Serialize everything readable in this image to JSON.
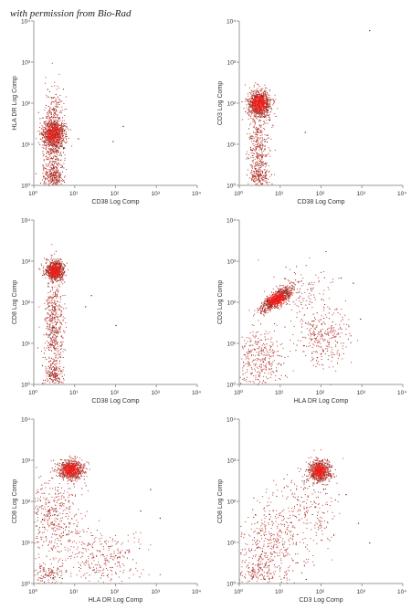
{
  "watermark": "with permission from Bio-Rad",
  "colors": {
    "dense": "#e8201c",
    "sparse": "#c23a32",
    "dark": "#6a1a14",
    "axis": "#9a9a9a"
  },
  "chart_data": [
    {
      "type": "scatter",
      "xlabel": "CD38 Log Comp",
      "ylabel": "HLA DR Log Comp",
      "xscale": "log",
      "yscale": "log",
      "xlim": [
        1,
        10000
      ],
      "ylim": [
        1,
        10000
      ],
      "xticks": [
        "10⁰",
        "10¹",
        "10²",
        "10³",
        "10⁴"
      ],
      "yticks": [
        "10⁰",
        "10¹",
        "10²",
        "10³",
        "10⁴"
      ],
      "clusters": [
        {
          "cx": 3,
          "cy": 18,
          "sx": 0.14,
          "sy": 0.18,
          "n": 900
        },
        {
          "cx": 3,
          "cy": 40,
          "sx": 0.13,
          "sy": 0.45,
          "n": 250
        },
        {
          "cx": 3,
          "cy": 1.6,
          "sx": 0.13,
          "sy": 0.16,
          "n": 260
        },
        {
          "cx": 3,
          "cy": 5,
          "sx": 0.13,
          "sy": 0.35,
          "n": 200
        }
      ],
      "outliers": [
        [
          12,
          14
        ],
        [
          85,
          12
        ],
        [
          150,
          28
        ]
      ]
    },
    {
      "type": "scatter",
      "xlabel": "CD38 Log Comp",
      "ylabel": "CD3 Log Comp",
      "xscale": "log",
      "yscale": "log",
      "xlim": [
        1,
        10000
      ],
      "ylim": [
        1,
        10000
      ],
      "xticks": [
        "10⁰",
        "10¹",
        "10²",
        "10³",
        "10⁴"
      ],
      "yticks": [
        "10⁰",
        "10¹",
        "10²",
        "10³",
        "10⁴"
      ],
      "clusters": [
        {
          "cx": 3,
          "cy": 100,
          "sx": 0.14,
          "sy": 0.16,
          "n": 1000
        },
        {
          "cx": 3,
          "cy": 8,
          "sx": 0.13,
          "sy": 0.45,
          "n": 350
        },
        {
          "cx": 3,
          "cy": 1.7,
          "sx": 0.12,
          "sy": 0.15,
          "n": 150
        }
      ],
      "outliers": [
        [
          40,
          20
        ],
        [
          1500,
          6000
        ]
      ]
    },
    {
      "type": "scatter",
      "xlabel": "CD38 Log Comp",
      "ylabel": "CD8 Log Comp",
      "xscale": "log",
      "yscale": "log",
      "xlim": [
        1,
        10000
      ],
      "ylim": [
        1,
        10000
      ],
      "xticks": [
        "10⁰",
        "10¹",
        "10²",
        "10³",
        "10⁴"
      ],
      "yticks": [
        "10⁰",
        "10¹",
        "10²",
        "10³",
        "10⁴"
      ],
      "clusters": [
        {
          "cx": 3.2,
          "cy": 600,
          "sx": 0.11,
          "sy": 0.12,
          "n": 800
        },
        {
          "cx": 3,
          "cy": 30,
          "sx": 0.12,
          "sy": 0.6,
          "n": 500
        },
        {
          "cx": 3,
          "cy": 1.6,
          "sx": 0.12,
          "sy": 0.15,
          "n": 160
        }
      ],
      "outliers": [
        [
          18,
          80
        ],
        [
          100,
          28
        ],
        [
          25,
          150
        ]
      ]
    },
    {
      "type": "scatter",
      "xlabel": "HLA DR Log Comp",
      "ylabel": "CD3 Log Comp",
      "xscale": "log",
      "yscale": "log",
      "xlim": [
        1,
        10000
      ],
      "ylim": [
        1,
        10000
      ],
      "xticks": [
        "10⁰",
        "10¹",
        "10²",
        "10³",
        "10⁴"
      ],
      "yticks": [
        "10⁰",
        "10¹",
        "10²",
        "10³",
        "10⁴"
      ],
      "clusters": [
        {
          "cx": 8,
          "cy": 120,
          "sx": 0.18,
          "sy": 0.14,
          "n": 1000,
          "rho": 0.75
        },
        {
          "cx": 3,
          "cy": 4,
          "sx": 0.3,
          "sy": 0.4,
          "n": 350
        },
        {
          "cx": 100,
          "cy": 15,
          "sx": 0.35,
          "sy": 0.35,
          "n": 300
        },
        {
          "cx": 40,
          "cy": 200,
          "sx": 0.4,
          "sy": 0.35,
          "n": 120
        }
      ],
      "outliers": [
        [
          600,
          300
        ],
        [
          900,
          40
        ],
        [
          300,
          400
        ]
      ]
    },
    {
      "type": "scatter",
      "xlabel": "HLA DR Log Comp",
      "ylabel": "CD8 Log Comp",
      "xscale": "log",
      "yscale": "log",
      "xlim": [
        1,
        10000
      ],
      "ylim": [
        1,
        10000
      ],
      "xticks": [
        "10⁰",
        "10¹",
        "10²",
        "10³",
        "10⁴"
      ],
      "yticks": [
        "10⁰",
        "10¹",
        "10²",
        "10³",
        "10⁴"
      ],
      "clusters": [
        {
          "cx": 8,
          "cy": 600,
          "sx": 0.15,
          "sy": 0.12,
          "n": 800
        },
        {
          "cx": 3,
          "cy": 40,
          "sx": 0.35,
          "sy": 0.55,
          "n": 450
        },
        {
          "cx": 50,
          "cy": 4,
          "sx": 0.45,
          "sy": 0.35,
          "n": 300
        },
        {
          "cx": 2,
          "cy": 1.7,
          "sx": 0.2,
          "sy": 0.15,
          "n": 120
        }
      ],
      "outliers": [
        [
          400,
          60
        ],
        [
          1200,
          40
        ],
        [
          700,
          200
        ]
      ]
    },
    {
      "type": "scatter",
      "xlabel": "CD3 Log Comp",
      "ylabel": "CD8 Log Comp",
      "xscale": "log",
      "yscale": "log",
      "xlim": [
        1,
        10000
      ],
      "ylim": [
        1,
        10000
      ],
      "xticks": [
        "10⁰",
        "10¹",
        "10²",
        "10³",
        "10⁴"
      ],
      "yticks": [
        "10⁰",
        "10¹",
        "10²",
        "10³",
        "10⁴"
      ],
      "clusters": [
        {
          "cx": 90,
          "cy": 550,
          "sx": 0.13,
          "sy": 0.13,
          "n": 800
        },
        {
          "cx": 5,
          "cy": 8,
          "sx": 0.4,
          "sy": 0.5,
          "n": 400
        },
        {
          "cx": 40,
          "cy": 60,
          "sx": 0.4,
          "sy": 0.5,
          "n": 250
        },
        {
          "cx": 3,
          "cy": 1.7,
          "sx": 0.3,
          "sy": 0.15,
          "n": 120
        }
      ],
      "outliers": [
        [
          800,
          30
        ],
        [
          1500,
          10
        ],
        [
          400,
          150
        ]
      ]
    }
  ]
}
